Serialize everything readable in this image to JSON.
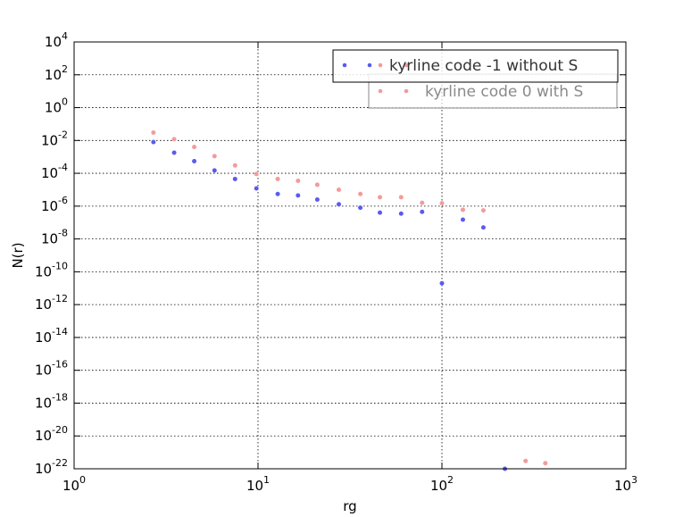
{
  "chart_data": {
    "type": "scatter",
    "title": "",
    "xlabel": "rg",
    "ylabel": "N(r)",
    "xscale": "log",
    "yscale": "log",
    "xlim": [
      1,
      1000
    ],
    "ylim": [
      1e-22,
      10000.0
    ],
    "grid": true,
    "legend_position": "top-right",
    "x_ticks": [
      {
        "value": 1,
        "base": "10",
        "exp": "0"
      },
      {
        "value": 10,
        "base": "10",
        "exp": "1"
      },
      {
        "value": 100,
        "base": "10",
        "exp": "2"
      },
      {
        "value": 1000,
        "base": "10",
        "exp": "3"
      }
    ],
    "y_ticks": [
      {
        "value": 10000.0,
        "base": "10",
        "exp": "4"
      },
      {
        "value": 100.0,
        "base": "10",
        "exp": "2"
      },
      {
        "value": 1.0,
        "base": "10",
        "exp": "0"
      },
      {
        "value": 0.01,
        "base": "10",
        "exp": "-2"
      },
      {
        "value": 0.0001,
        "base": "10",
        "exp": "-4"
      },
      {
        "value": 1e-06,
        "base": "10",
        "exp": "-6"
      },
      {
        "value": 1e-08,
        "base": "10",
        "exp": "-8"
      },
      {
        "value": 1e-10,
        "base": "10",
        "exp": "-10"
      },
      {
        "value": 1e-12,
        "base": "10",
        "exp": "-12"
      },
      {
        "value": 1e-14,
        "base": "10",
        "exp": "-14"
      },
      {
        "value": 1e-16,
        "base": "10",
        "exp": "-16"
      },
      {
        "value": 1e-18,
        "base": "10",
        "exp": "-18"
      },
      {
        "value": 1e-20,
        "base": "10",
        "exp": "-20"
      },
      {
        "value": 1e-22,
        "base": "10",
        "exp": "-22"
      }
    ],
    "series": [
      {
        "name": "kyrline code -1 without S",
        "color": "#5b5bef",
        "points": [
          [
            2.7,
            0.008
          ],
          [
            3.5,
            0.0018
          ],
          [
            4.5,
            0.00055
          ],
          [
            5.8,
            0.00015
          ],
          [
            7.5,
            4.5e-05
          ],
          [
            9.8,
            1.2e-05
          ],
          [
            12.8,
            5.5e-06
          ],
          [
            16.5,
            4.5e-06
          ],
          [
            21,
            2.5e-06
          ],
          [
            27.5,
            1.3e-06
          ],
          [
            36,
            8e-07
          ],
          [
            46,
            4e-07
          ],
          [
            60,
            3.5e-07
          ],
          [
            78,
            4.5e-07
          ],
          [
            100,
            2e-11
          ],
          [
            130,
            1.5e-07
          ],
          [
            168,
            5e-08
          ],
          [
            220,
            1e-22
          ]
        ]
      },
      {
        "name": "kyrline code 0 with S",
        "color": "#f39b9b",
        "points": [
          [
            2.7,
            0.03
          ],
          [
            3.5,
            0.012
          ],
          [
            4.5,
            0.004
          ],
          [
            5.8,
            0.0011
          ],
          [
            7.5,
            0.0003
          ],
          [
            9.8,
            9e-05
          ],
          [
            12.8,
            4.5e-05
          ],
          [
            16.5,
            3.5e-05
          ],
          [
            21,
            2e-05
          ],
          [
            27.5,
            1e-05
          ],
          [
            36,
            5.5e-06
          ],
          [
            46,
            3.5e-06
          ],
          [
            60,
            3.5e-06
          ],
          [
            78,
            1.6e-06
          ],
          [
            100,
            1.5e-06
          ],
          [
            130,
            6e-07
          ],
          [
            168,
            5.5e-07
          ],
          [
            285,
            3e-22
          ],
          [
            365,
            2.2e-22
          ]
        ]
      }
    ]
  }
}
